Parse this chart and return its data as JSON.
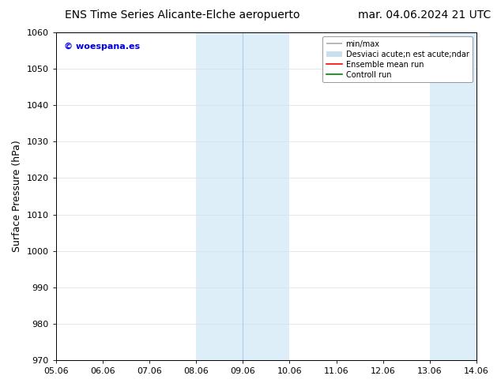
{
  "title_left": "ENS Time Series Alicante-Elche aeropuerto",
  "title_right": "mar. 04.06.2024 21 UTC",
  "ylabel": "Surface Pressure (hPa)",
  "ylim": [
    970,
    1060
  ],
  "yticks": [
    970,
    980,
    990,
    1000,
    1010,
    1020,
    1030,
    1040,
    1050,
    1060
  ],
  "xtick_labels": [
    "05.06",
    "06.06",
    "07.06",
    "08.06",
    "09.06",
    "10.06",
    "11.06",
    "12.06",
    "13.06",
    "14.06"
  ],
  "xtick_positions": [
    0,
    1,
    2,
    3,
    4,
    5,
    6,
    7,
    8,
    9
  ],
  "xlim": [
    0,
    9
  ],
  "shaded_regions": [
    {
      "x_start": 3.0,
      "x_end": 5.0,
      "color": "#ddeef9"
    },
    {
      "x_start": 8.0,
      "x_end": 9.0,
      "color": "#ddeef9"
    }
  ],
  "inner_lines": [
    {
      "x": 4.0,
      "color": "#aaccee",
      "linewidth": 0.8
    }
  ],
  "watermark_text": "© woespana.es",
  "watermark_color": "#0000dd",
  "legend_label_minmax": "min/max",
  "legend_label_desv": "Desviaci acute;n est acute;ndar",
  "legend_label_ens": "Ensemble mean run",
  "legend_label_ctrl": "Controll run",
  "legend_color_minmax": "#aaaaaa",
  "legend_color_desv": "#c8dff0",
  "legend_color_ens": "red",
  "legend_color_ctrl": "green",
  "bg_color": "#ffffff",
  "plot_bg_color": "#ffffff",
  "border_color": "#000000",
  "grid_color": "#dddddd",
  "title_fontsize": 10,
  "axis_label_fontsize": 9,
  "tick_fontsize": 8,
  "legend_fontsize": 7,
  "watermark_fontsize": 8
}
